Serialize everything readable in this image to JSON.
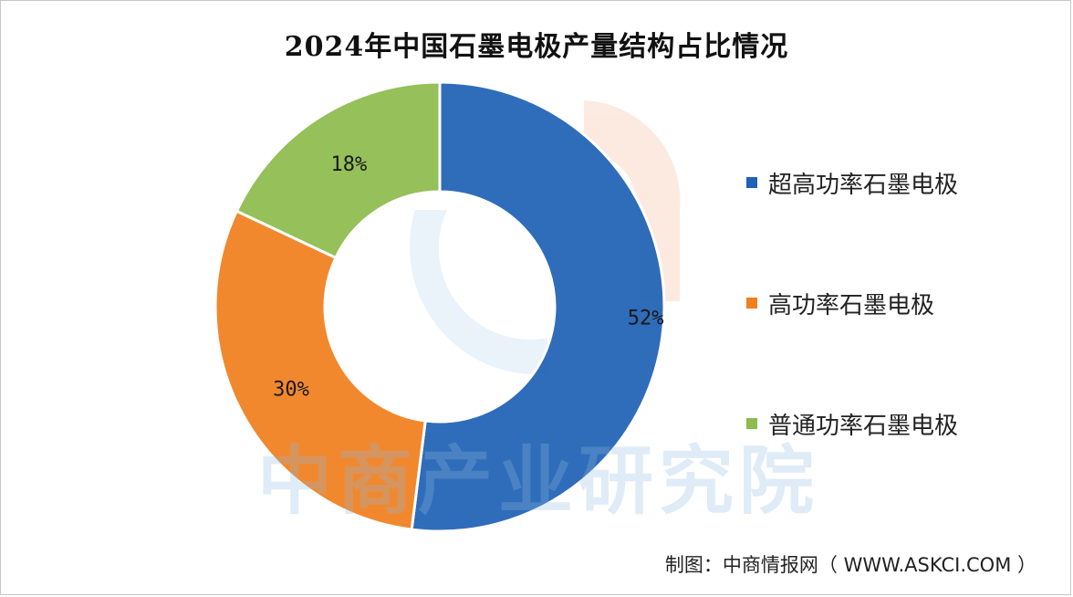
{
  "chart_data": {
    "type": "pie",
    "variant": "donut",
    "title": "2024年中国石墨电极产量结构占比情况",
    "categories": [
      "超高功率石墨电极",
      "高功率石墨电极",
      "普通功率石墨电极"
    ],
    "values": [
      52,
      30,
      18
    ],
    "data_labels": [
      "52%",
      "30%",
      "18%"
    ],
    "colors": [
      "#1f62b5",
      "#f07f1e",
      "#8dbb4d"
    ],
    "legend_position": "right"
  },
  "watermark": {
    "text": "中商产业研究院"
  },
  "source": {
    "label": "制图：中商情报网",
    "site": "（ WWW.ASKCI.COM ）"
  }
}
